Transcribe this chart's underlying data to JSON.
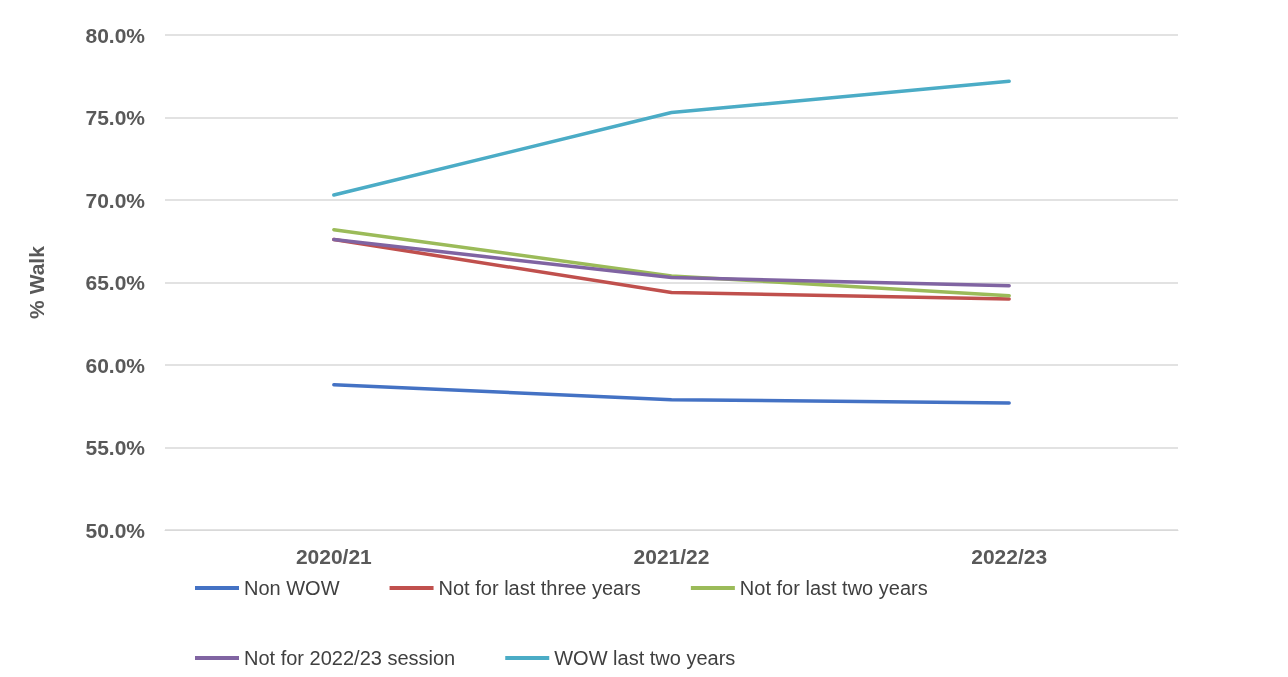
{
  "chart_data": {
    "type": "line",
    "ylabel": "% Walk",
    "categories": [
      "2020/21",
      "2021/22",
      "2022/23"
    ],
    "series": [
      {
        "name": "Non WOW",
        "color": "#4472c4",
        "values": [
          58.8,
          57.9,
          57.7
        ]
      },
      {
        "name": "Not for last three years",
        "color": "#c0504d",
        "values": [
          67.6,
          64.4,
          64.0
        ]
      },
      {
        "name": "Not for last two years",
        "color": "#9bbb59",
        "values": [
          68.2,
          65.4,
          64.2
        ]
      },
      {
        "name": "Not for 2022/23 session",
        "color": "#8064a2",
        "values": [
          67.6,
          65.3,
          64.8
        ]
      },
      {
        "name": "WOW last two years",
        "color": "#4bacc6",
        "values": [
          70.3,
          75.3,
          77.2
        ]
      }
    ],
    "ylim": [
      50,
      80
    ],
    "yticks": [
      {
        "value": 50,
        "label": "50.0%"
      },
      {
        "value": 55,
        "label": "55.0%"
      },
      {
        "value": 60,
        "label": "60.0%"
      },
      {
        "value": 65,
        "label": "65.0%"
      },
      {
        "value": 70,
        "label": "70.0%"
      },
      {
        "value": 75,
        "label": "75.0%"
      },
      {
        "value": 80,
        "label": "80.0%"
      }
    ],
    "grid": "y",
    "legend": "bottom",
    "marker": "none",
    "line_style": "solid"
  }
}
